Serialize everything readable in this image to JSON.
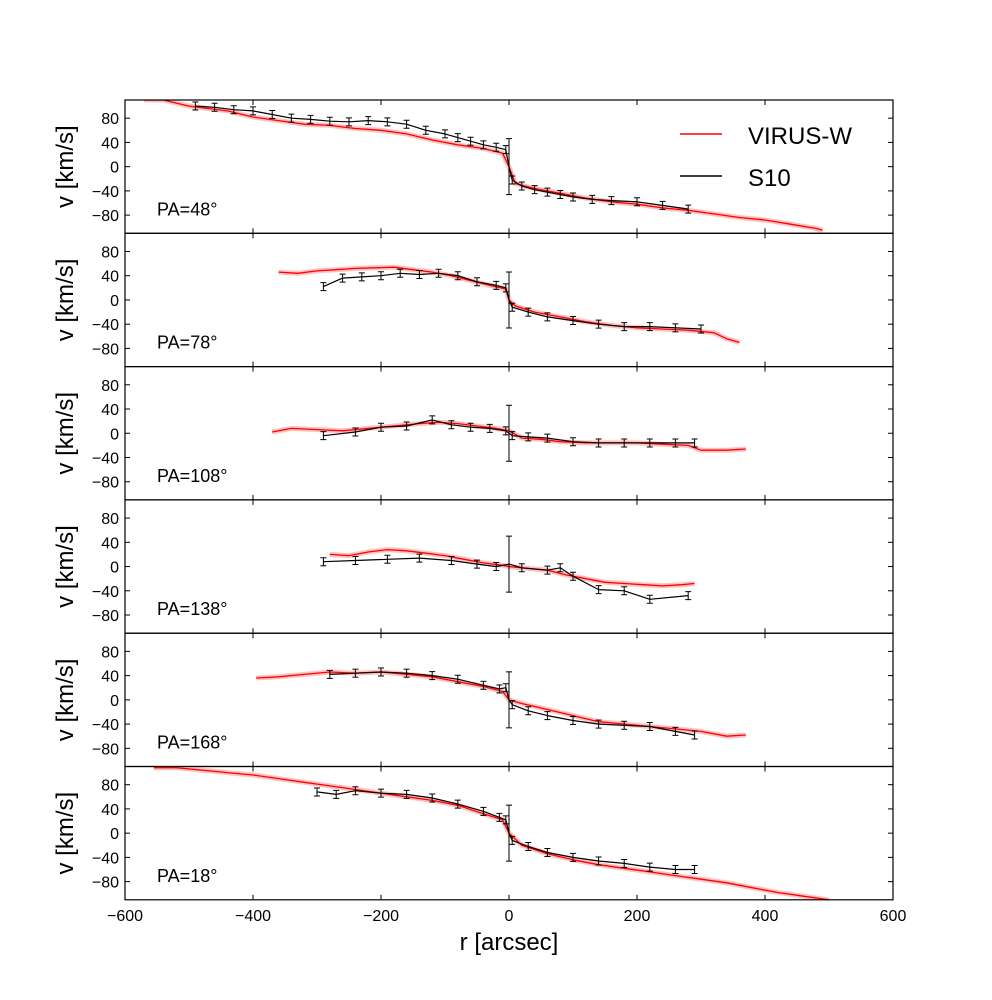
{
  "chart_data": [
    {
      "type": "line",
      "panel_label": "PA=48°",
      "ylabel": "v [km/s]",
      "xlabel": "r [arcsec]",
      "xlim": [
        -600,
        600
      ],
      "ylim": [
        -110,
        110
      ],
      "yticks": [
        "80",
        "40",
        "0",
        "−40",
        "−80"
      ],
      "legend": {
        "placement": "top-right",
        "entries": [
          "VIRUS-W",
          "S10"
        ]
      },
      "series": [
        {
          "name": "VIRUS-W",
          "color": "#ff0000",
          "x": [
            -570,
            -540,
            -500,
            -470,
            -440,
            -400,
            -360,
            -320,
            -280,
            -240,
            -200,
            -160,
            -120,
            -80,
            -40,
            -10,
            0,
            10,
            40,
            80,
            120,
            160,
            200,
            240,
            280,
            320,
            360,
            400,
            440,
            480,
            490
          ],
          "y": [
            110,
            110,
            100,
            96,
            92,
            82,
            76,
            70,
            68,
            63,
            60,
            54,
            44,
            36,
            30,
            22,
            0,
            -28,
            -36,
            -44,
            -52,
            -58,
            -62,
            -68,
            -72,
            -78,
            -84,
            -88,
            -95,
            -102,
            -105
          ]
        },
        {
          "name": "S10",
          "color": "#000000",
          "x": [
            -490,
            -460,
            -430,
            -400,
            -370,
            -340,
            -310,
            -280,
            -250,
            -220,
            -190,
            -160,
            -130,
            -100,
            -80,
            -60,
            -40,
            -20,
            -5,
            0,
            5,
            20,
            40,
            60,
            80,
            100,
            130,
            160,
            200,
            240,
            280
          ],
          "y": [
            100,
            98,
            94,
            92,
            86,
            80,
            78,
            75,
            74,
            76,
            74,
            70,
            60,
            54,
            48,
            42,
            36,
            32,
            28,
            0,
            -22,
            -32,
            -38,
            -42,
            -46,
            -50,
            -54,
            -56,
            -58,
            -64,
            -70
          ]
        }
      ]
    },
    {
      "type": "line",
      "panel_label": "PA=78°",
      "ylabel": "v [km/s]",
      "xlim": [
        -600,
        600
      ],
      "ylim": [
        -110,
        110
      ],
      "yticks": [
        "80",
        "40",
        "0",
        "−40",
        "−80"
      ],
      "series": [
        {
          "name": "VIRUS-W",
          "color": "#ff0000",
          "x": [
            -360,
            -330,
            -300,
            -270,
            -240,
            -210,
            -180,
            -150,
            -120,
            -90,
            -60,
            -30,
            -5,
            0,
            10,
            40,
            80,
            120,
            160,
            200,
            240,
            280,
            320,
            340,
            360
          ],
          "y": [
            46,
            44,
            48,
            50,
            52,
            53,
            54,
            50,
            46,
            40,
            32,
            24,
            18,
            0,
            -10,
            -20,
            -28,
            -36,
            -42,
            -46,
            -48,
            -50,
            -54,
            -64,
            -70
          ]
        },
        {
          "name": "S10",
          "color": "#000000",
          "x": [
            -290,
            -260,
            -230,
            -200,
            -170,
            -140,
            -110,
            -80,
            -50,
            -20,
            -5,
            0,
            5,
            30,
            60,
            100,
            140,
            180,
            220,
            260,
            300
          ],
          "y": [
            22,
            36,
            38,
            40,
            44,
            42,
            44,
            40,
            30,
            24,
            20,
            0,
            -12,
            -20,
            -28,
            -34,
            -40,
            -44,
            -44,
            -46,
            -48
          ]
        }
      ]
    },
    {
      "type": "line",
      "panel_label": "PA=108°",
      "ylabel": "v [km/s]",
      "xlim": [
        -600,
        600
      ],
      "ylim": [
        -110,
        110
      ],
      "yticks": [
        "80",
        "40",
        "0",
        "−40",
        "−80"
      ],
      "series": [
        {
          "name": "VIRUS-W",
          "color": "#ff0000",
          "x": [
            -370,
            -340,
            -300,
            -260,
            -220,
            -180,
            -140,
            -110,
            -80,
            -50,
            -20,
            0,
            20,
            50,
            80,
            120,
            160,
            200,
            240,
            280,
            300,
            340,
            370
          ],
          "y": [
            2,
            8,
            6,
            4,
            8,
            12,
            16,
            18,
            16,
            12,
            8,
            4,
            -8,
            -10,
            -14,
            -16,
            -16,
            -16,
            -18,
            -20,
            -28,
            -28,
            -26
          ]
        },
        {
          "name": "S10",
          "color": "#000000",
          "x": [
            -290,
            -240,
            -200,
            -160,
            -120,
            -90,
            -60,
            -30,
            -5,
            0,
            5,
            30,
            60,
            100,
            140,
            180,
            220,
            260,
            290
          ],
          "y": [
            -4,
            2,
            10,
            12,
            22,
            14,
            10,
            8,
            4,
            0,
            -4,
            -6,
            -8,
            -14,
            -16,
            -16,
            -16,
            -16,
            -16
          ]
        }
      ]
    },
    {
      "type": "line",
      "panel_label": "PA=138°",
      "ylabel": "v [km/s]",
      "xlim": [
        -600,
        600
      ],
      "ylim": [
        -110,
        110
      ],
      "yticks": [
        "80",
        "40",
        "0",
        "−40",
        "−80"
      ],
      "series": [
        {
          "name": "VIRUS-W",
          "color": "#ff0000",
          "x": [
            -280,
            -250,
            -220,
            -190,
            -160,
            -130,
            -100,
            -70,
            -40,
            -10,
            0,
            20,
            60,
            90,
            120,
            150,
            180,
            210,
            240,
            270,
            290
          ],
          "y": [
            20,
            18,
            24,
            28,
            26,
            22,
            18,
            12,
            6,
            2,
            0,
            -2,
            -6,
            -14,
            -20,
            -26,
            -28,
            -30,
            -32,
            -30,
            -28
          ]
        },
        {
          "name": "S10",
          "color": "#000000",
          "x": [
            -290,
            -240,
            -190,
            -140,
            -90,
            -50,
            -20,
            0,
            20,
            60,
            80,
            100,
            140,
            180,
            220,
            280
          ],
          "y": [
            8,
            10,
            12,
            14,
            10,
            4,
            0,
            4,
            -2,
            -6,
            -2,
            -16,
            -38,
            -40,
            -54,
            -48
          ]
        }
      ]
    },
    {
      "type": "line",
      "panel_label": "PA=168°",
      "ylabel": "v [km/s]",
      "xlim": [
        -600,
        600
      ],
      "ylim": [
        -110,
        110
      ],
      "yticks": [
        "80",
        "40",
        "0",
        "−40",
        "−80"
      ],
      "series": [
        {
          "name": "VIRUS-W",
          "color": "#ff0000",
          "x": [
            -395,
            -360,
            -320,
            -280,
            -240,
            -200,
            -160,
            -120,
            -80,
            -40,
            -10,
            0,
            20,
            60,
            100,
            140,
            180,
            220,
            260,
            300,
            340,
            370
          ],
          "y": [
            36,
            38,
            42,
            46,
            44,
            46,
            42,
            38,
            30,
            22,
            14,
            0,
            -6,
            -16,
            -26,
            -36,
            -40,
            -44,
            -48,
            -52,
            -60,
            -58
          ]
        },
        {
          "name": "S10",
          "color": "#000000",
          "x": [
            -280,
            -240,
            -200,
            -160,
            -120,
            -80,
            -40,
            -15,
            -5,
            0,
            5,
            30,
            60,
            100,
            140,
            180,
            220,
            260,
            290
          ],
          "y": [
            42,
            44,
            46,
            44,
            40,
            34,
            24,
            18,
            20,
            0,
            -8,
            -18,
            -26,
            -34,
            -40,
            -42,
            -44,
            -52,
            -58
          ]
        }
      ]
    },
    {
      "type": "line",
      "panel_label": "PA=18°",
      "ylabel": "v [km/s]",
      "xlim": [
        -600,
        600
      ],
      "ylim": [
        -110,
        110
      ],
      "yticks": [
        "80",
        "40",
        "0",
        "−40",
        "−80"
      ],
      "xticks": [
        "−600",
        "−400",
        "−200",
        "0",
        "200",
        "400",
        "600"
      ],
      "series": [
        {
          "name": "VIRUS-W",
          "color": "#ff0000",
          "x": [
            -555,
            -520,
            -480,
            -440,
            -400,
            -360,
            -320,
            -280,
            -240,
            -200,
            -160,
            -120,
            -80,
            -40,
            -10,
            0,
            20,
            60,
            100,
            140,
            180,
            220,
            260,
            300,
            340,
            380,
            420,
            460,
            500
          ],
          "y": [
            108,
            108,
            104,
            100,
            96,
            90,
            84,
            78,
            72,
            66,
            60,
            54,
            46,
            32,
            22,
            0,
            -20,
            -34,
            -44,
            -52,
            -58,
            -64,
            -70,
            -76,
            -82,
            -90,
            -98,
            -104,
            -110
          ]
        },
        {
          "name": "S10",
          "color": "#000000",
          "x": [
            -300,
            -270,
            -240,
            -200,
            -160,
            -120,
            -80,
            -40,
            -15,
            -5,
            0,
            5,
            30,
            60,
            100,
            140,
            180,
            220,
            260,
            290
          ],
          "y": [
            68,
            64,
            70,
            66,
            64,
            58,
            48,
            36,
            26,
            22,
            0,
            -12,
            -22,
            -32,
            -40,
            -46,
            -50,
            -56,
            -60,
            -60
          ]
        }
      ]
    }
  ]
}
